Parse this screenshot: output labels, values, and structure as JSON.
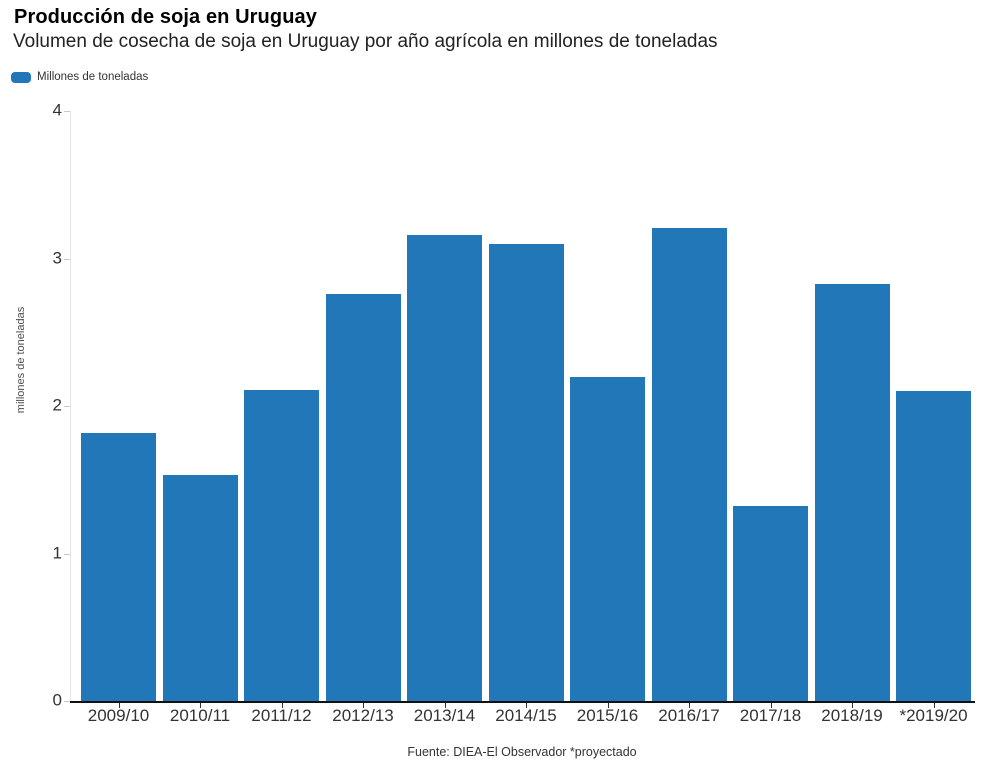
{
  "header": {
    "title": "Producción de soja en Uruguay",
    "subtitle": "Volumen de cosecha de soja en Uruguay por año agrícola en millones de toneladas"
  },
  "legend": {
    "label": "Millones de toneladas"
  },
  "y_axis": {
    "label": "millones de toneladas",
    "ticks": [
      "4",
      "3",
      "2",
      "1",
      "0"
    ]
  },
  "footer": {
    "source": "Fuente: DIEA-El Observador *proyectado"
  },
  "colors": {
    "bar": "#2277b8",
    "baseline": "#111111",
    "y_axis_line": "#e4e4e4",
    "tick_text": "#333333"
  },
  "chart_data": {
    "type": "bar",
    "title": "Producción de soja en Uruguay",
    "subtitle": "Volumen de cosecha de soja en Uruguay por año agrícola en millones de toneladas",
    "categories": [
      "2009/10",
      "2010/11",
      "2011/12",
      "2012/13",
      "2013/14",
      "2014/15",
      "2015/16",
      "2016/17",
      "2017/18",
      "2018/19",
      "*2019/20"
    ],
    "series": [
      {
        "name": "Millones de toneladas",
        "values": [
          1.82,
          1.53,
          2.11,
          2.76,
          3.16,
          3.1,
          2.2,
          3.21,
          1.32,
          2.83,
          2.1
        ]
      }
    ],
    "xlabel": "",
    "ylabel": "millones de toneladas",
    "ylim": [
      0,
      4
    ],
    "yticks": [
      0,
      1,
      2,
      3,
      4
    ],
    "grid": false,
    "legend_position": "top-left",
    "bar_color": "#2277b8",
    "source": "Fuente: DIEA-El Observador *proyectado"
  }
}
